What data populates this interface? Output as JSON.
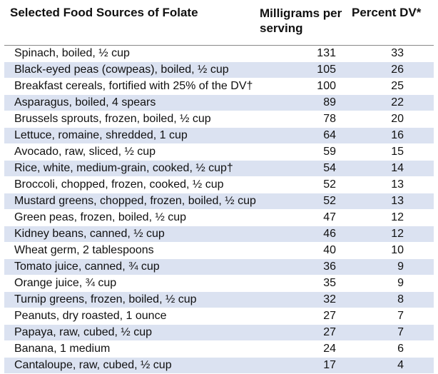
{
  "header": {
    "food": "Selected Food Sources of Folate",
    "mg": "Milligrams per serving",
    "dv": "Percent DV*"
  },
  "rows": [
    {
      "food": "Spinach, boiled, ½ cup",
      "mg": "131",
      "dv": "33"
    },
    {
      "food": "Black-eyed peas (cowpeas), boiled, ½ cup",
      "mg": "105",
      "dv": "26"
    },
    {
      "food": "Breakfast cereals, fortified with 25% of the DV†",
      "mg": "100",
      "dv": "25"
    },
    {
      "food": "Asparagus, boiled, 4 spears",
      "mg": "89",
      "dv": "22"
    },
    {
      "food": "Brussels sprouts, frozen, boiled, ½ cup",
      "mg": "78",
      "dv": "20"
    },
    {
      "food": "Lettuce, romaine, shredded, 1 cup",
      "mg": "64",
      "dv": "16"
    },
    {
      "food": "Avocado, raw, sliced, ½ cup",
      "mg": "59",
      "dv": "15"
    },
    {
      "food": "Rice, white, medium-grain, cooked, ½ cup†",
      "mg": "54",
      "dv": "14"
    },
    {
      "food": "Broccoli, chopped, frozen, cooked, ½ cup",
      "mg": "52",
      "dv": "13"
    },
    {
      "food": "Mustard greens, chopped, frozen, boiled, ½ cup",
      "mg": "52",
      "dv": "13"
    },
    {
      "food": "Green peas, frozen, boiled, ½ cup",
      "mg": "47",
      "dv": "12"
    },
    {
      "food": "Kidney beans, canned, ½ cup",
      "mg": "46",
      "dv": "12"
    },
    {
      "food": "Wheat germ, 2 tablespoons",
      "mg": "40",
      "dv": "10"
    },
    {
      "food": "Tomato juice, canned, ¾ cup",
      "mg": "36",
      "dv": "9"
    },
    {
      "food": "Orange juice, ¾ cup",
      "mg": "35",
      "dv": "9"
    },
    {
      "food": "Turnip greens, frozen, boiled, ½ cup",
      "mg": "32",
      "dv": "8"
    },
    {
      "food": "Peanuts, dry roasted, 1 ounce",
      "mg": "27",
      "dv": "7"
    },
    {
      "food": "Papaya, raw, cubed, ½ cup",
      "mg": "27",
      "dv": "7"
    },
    {
      "food": "Banana, 1 medium",
      "mg": "24",
      "dv": "6"
    },
    {
      "food": "Cantaloupe, raw, cubed, ½ cup",
      "mg": "17",
      "dv": "4"
    }
  ],
  "colors": {
    "alt_row": "#dbe2f1",
    "text": "#111111"
  }
}
